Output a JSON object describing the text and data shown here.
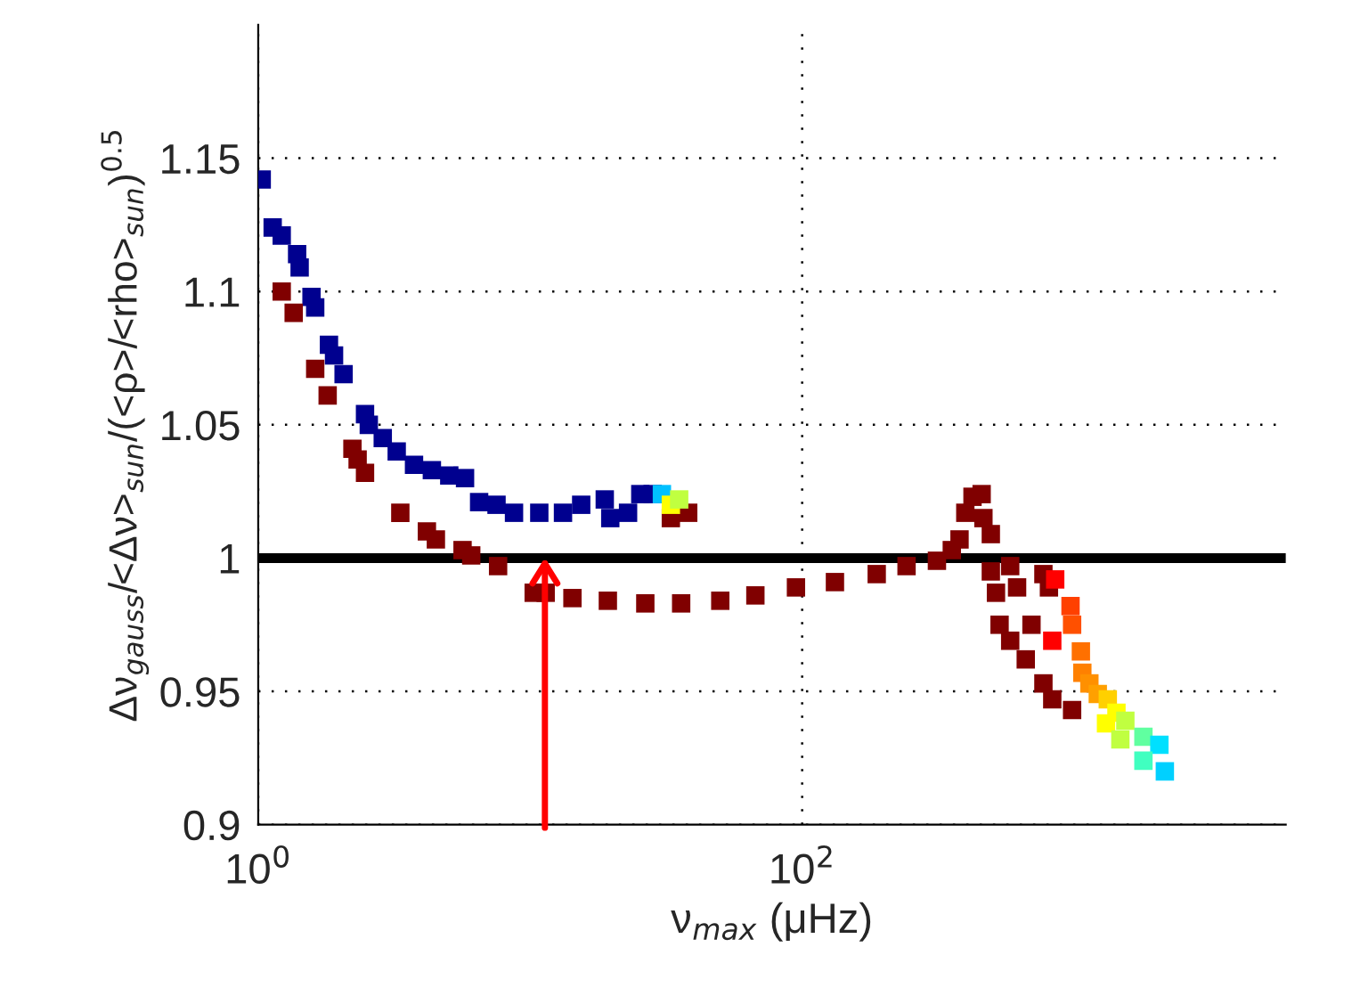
{
  "chart_data": {
    "type": "scatter",
    "xlabel": "ν$_{max}$ (μHz)",
    "ylabel": "Δν$_{gauss}$/<Δν>$_{sun}$/(<ρ>/<rho>$_{sun}$)$^{0.5}$",
    "log": "x",
    "xlim": [
      1,
      6000
    ],
    "xticks": [
      {
        "value": 1,
        "label": "10$^{0}$"
      },
      {
        "value": 100,
        "label": "10$^{2}$"
      }
    ],
    "ylim": [
      0.9,
      1.2
    ],
    "yticks": [
      0.9,
      0.95,
      1,
      1.05,
      1.1,
      1.15
    ],
    "grid": true,
    "marker": "square",
    "legend": false,
    "ref_lines": [
      {
        "axis": "y",
        "value": 1,
        "color": "#000000",
        "line_style": "solid"
      }
    ],
    "series": [
      {
        "color": "#00008f",
        "x": [
          1.03,
          1.13,
          1.22,
          1.39,
          1.42,
          1.57,
          1.62,
          1.82,
          1.9,
          2.06,
          2.47,
          2.55,
          2.87,
          3.23,
          3.74,
          4.35,
          5.04,
          5.76,
          6.49,
          7.52,
          8.72,
          10.8,
          13.2,
          15.4,
          18.8,
          19.7,
          22.9,
          25.4,
          28.2
        ],
        "values": [
          1.142,
          1.124,
          1.121,
          1.114,
          1.109,
          1.098,
          1.094,
          1.08,
          1.076,
          1.069,
          1.054,
          1.05,
          1.045,
          1.04,
          1.035,
          1.033,
          1.031,
          1.03,
          1.021,
          1.02,
          1.017,
          1.017,
          1.017,
          1.02,
          1.022,
          1.015,
          1.017,
          1.024,
          1.024
        ]
      },
      {
        "color": "#800000",
        "x": [
          1.22,
          1.35,
          1.62,
          1.8,
          2.22,
          2.32,
          2.47,
          3.33,
          4.17,
          4.5,
          5.64,
          6.07,
          7.62,
          10.3,
          11.4,
          14.3,
          19.3,
          26.5,
          35.9,
          50.0,
          67.3,
          94.9,
          132,
          188,
          242,
          313,
          355,
          379,
          398,
          423,
          457,
          464,
          494,
          494,
          516,
          532,
          582,
          664,
          771,
          831,
          983,
          582,
          617,
          697,
          771,
          808,
          32.9,
          38.1
        ],
        "values": [
          1.1,
          1.092,
          1.071,
          1.061,
          1.041,
          1.037,
          1.032,
          1.017,
          1.01,
          1.007,
          1.003,
          1.001,
          0.997,
          0.987,
          0.987,
          0.985,
          0.984,
          0.983,
          0.983,
          0.984,
          0.986,
          0.989,
          0.991,
          0.994,
          0.997,
          0.999,
          1.003,
          1.007,
          1.017,
          1.023,
          1.024,
          1.015,
          1.009,
          0.995,
          0.987,
          0.975,
          0.969,
          0.962,
          0.953,
          0.947,
          0.943,
          0.997,
          0.989,
          0.975,
          0.994,
          0.989,
          1.015,
          1.017
        ]
      },
      {
        "x": [
          30.5,
          32.9,
          35.3,
          852,
          970,
          983,
          831,
          1059,
          1072,
          1138,
          1222,
          1330,
          1431,
          1543,
          1798,
          2058,
          1310,
          1479,
          1798,
          2156
        ],
        "values": [
          1.024,
          1.02,
          1.022,
          0.992,
          0.982,
          0.975,
          0.969,
          0.965,
          0.957,
          0.953,
          0.949,
          0.947,
          0.942,
          0.939,
          0.933,
          0.93,
          0.938,
          0.932,
          0.924,
          0.92
        ],
        "colors": [
          "#00c0ff",
          "#ffff00",
          "#c0ff40",
          "#ff0000",
          "#ff4000",
          "#ff5000",
          "#ff0000",
          "#ff7000",
          "#ff8000",
          "#ff9000",
          "#ffa000",
          "#ffd000",
          "#ffff00",
          "#c0ff40",
          "#60ffa0",
          "#00e0ff",
          "#ffff00",
          "#c0ff40",
          "#40ffc0",
          "#00d0ff"
        ]
      }
    ]
  }
}
